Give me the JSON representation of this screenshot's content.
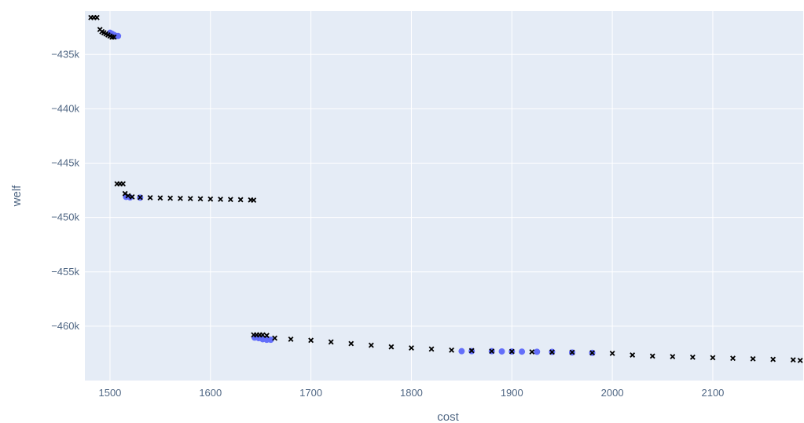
{
  "chart_data": {
    "type": "scatter",
    "xlabel": "cost",
    "ylabel": "welf",
    "xlim": [
      1475,
      2190
    ],
    "ylim": [
      -465000,
      -431000
    ],
    "x_ticks": [
      {
        "value": 1500,
        "label": "1500"
      },
      {
        "value": 1600,
        "label": "1600"
      },
      {
        "value": 1700,
        "label": "1700"
      },
      {
        "value": 1800,
        "label": "1800"
      },
      {
        "value": 1900,
        "label": "1900"
      },
      {
        "value": 2000,
        "label": "2000"
      },
      {
        "value": 2100,
        "label": "2100"
      }
    ],
    "y_ticks": [
      {
        "value": -435000,
        "label": "−435k"
      },
      {
        "value": -440000,
        "label": "−440k"
      },
      {
        "value": -445000,
        "label": "−445k"
      },
      {
        "value": -450000,
        "label": "−450k"
      },
      {
        "value": -455000,
        "label": "−455k"
      },
      {
        "value": -460000,
        "label": "−460k"
      }
    ],
    "grid": true,
    "colors": {
      "plot_bg": "#e5ecf6",
      "grid": "#ffffff",
      "series_fill": "#636efa",
      "marker_x": "#000000"
    },
    "series": [
      {
        "marker": "circle",
        "color": "#636efa",
        "points": [
          [
            1500,
            -433000
          ],
          [
            1502,
            -433100
          ],
          [
            1504,
            -433200
          ],
          [
            1506,
            -433300
          ],
          [
            1508,
            -433300
          ],
          [
            1516,
            -448100
          ],
          [
            1520,
            -448150
          ],
          [
            1530,
            -448170
          ],
          [
            1644,
            -461050
          ],
          [
            1648,
            -461100
          ],
          [
            1652,
            -461200
          ],
          [
            1656,
            -461250
          ],
          [
            1660,
            -461250
          ],
          [
            1850,
            -462300
          ],
          [
            1860,
            -462300
          ],
          [
            1880,
            -462300
          ],
          [
            1890,
            -462320
          ],
          [
            1900,
            -462330
          ],
          [
            1910,
            -462340
          ],
          [
            1925,
            -462350
          ],
          [
            1940,
            -462360
          ],
          [
            1960,
            -462420
          ],
          [
            1980,
            -462450
          ]
        ]
      },
      {
        "marker": "x",
        "color": "#000000",
        "points": [
          [
            1481,
            -431600
          ],
          [
            1484,
            -431600
          ],
          [
            1487,
            -431600
          ],
          [
            1490,
            -432700
          ],
          [
            1492,
            -432900
          ],
          [
            1494,
            -433000
          ],
          [
            1496,
            -433100
          ],
          [
            1498,
            -433200
          ],
          [
            1500,
            -433300
          ],
          [
            1502,
            -433400
          ],
          [
            1504,
            -433400
          ],
          [
            1507,
            -446900
          ],
          [
            1510,
            -446900
          ],
          [
            1513,
            -446900
          ],
          [
            1515,
            -447800
          ],
          [
            1518,
            -448000
          ],
          [
            1522,
            -448100
          ],
          [
            1530,
            -448150
          ],
          [
            1540,
            -448180
          ],
          [
            1550,
            -448200
          ],
          [
            1560,
            -448220
          ],
          [
            1570,
            -448240
          ],
          [
            1580,
            -448260
          ],
          [
            1590,
            -448280
          ],
          [
            1600,
            -448300
          ],
          [
            1610,
            -448320
          ],
          [
            1620,
            -448340
          ],
          [
            1630,
            -448360
          ],
          [
            1640,
            -448380
          ],
          [
            1643,
            -448400
          ],
          [
            1643,
            -460800
          ],
          [
            1646,
            -460800
          ],
          [
            1649,
            -460800
          ],
          [
            1652,
            -460800
          ],
          [
            1656,
            -460850
          ],
          [
            1664,
            -461100
          ],
          [
            1680,
            -461200
          ],
          [
            1700,
            -461300
          ],
          [
            1720,
            -461450
          ],
          [
            1740,
            -461600
          ],
          [
            1760,
            -461750
          ],
          [
            1780,
            -461900
          ],
          [
            1800,
            -462000
          ],
          [
            1820,
            -462100
          ],
          [
            1840,
            -462200
          ],
          [
            1860,
            -462250
          ],
          [
            1880,
            -462300
          ],
          [
            1900,
            -462330
          ],
          [
            1920,
            -462360
          ],
          [
            1940,
            -462380
          ],
          [
            1960,
            -462400
          ],
          [
            1980,
            -462450
          ],
          [
            2000,
            -462500
          ],
          [
            2020,
            -462650
          ],
          [
            2040,
            -462750
          ],
          [
            2060,
            -462800
          ],
          [
            2080,
            -462850
          ],
          [
            2100,
            -462900
          ],
          [
            2120,
            -462950
          ],
          [
            2140,
            -463000
          ],
          [
            2160,
            -463050
          ],
          [
            2180,
            -463100
          ],
          [
            2187,
            -463150
          ]
        ]
      }
    ]
  }
}
